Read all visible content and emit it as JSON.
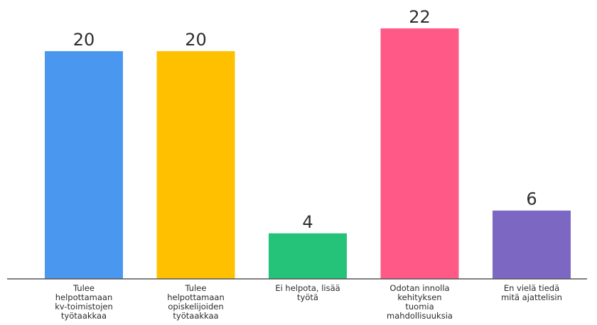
{
  "chart_data": {
    "type": "bar",
    "categories": [
      "Tulee\nhelpottamaan\nkv-toimistojen\ntyötaakkaa",
      "Tulee\nhelpottamaan\nopiskelijoiden\ntyötaakkaa",
      "Ei helpota, lisää\ntyötä",
      "Odotan innolla\nkehityksen\ntuomia\nmahdollisuuksia",
      "En vielä tiedä\nmitä ajattelisin"
    ],
    "values": [
      20,
      20,
      4,
      22,
      6
    ],
    "colors": [
      "#4A97F0",
      "#FFC000",
      "#25C27A",
      "#FF5A87",
      "#7C68C2"
    ],
    "ylim": [
      0,
      22
    ],
    "title": "",
    "xlabel": "",
    "ylabel": "",
    "grid": false,
    "legend": "none",
    "value_labels": [
      "20",
      "20",
      "4",
      "22",
      "6"
    ]
  }
}
